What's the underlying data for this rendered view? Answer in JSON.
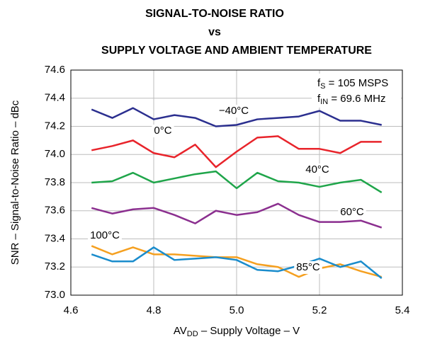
{
  "chart_data": {
    "type": "line",
    "title": [
      "SIGNAL-TO-NOISE RATIO",
      "vs",
      "SUPPLY VOLTAGE AND AMBIENT TEMPERATURE"
    ],
    "xlabel": {
      "text": "AV",
      "sub": "DD",
      "rest": " – Supply Voltage – V"
    },
    "ylabel": "SNR – Signal-to-Noise Ratio – dBc",
    "conditions": [
      {
        "text": "f",
        "sub": "S",
        "rest": " = 105 MSPS"
      },
      {
        "text": "f",
        "sub": "IN",
        "rest": " = 69.6 MHz"
      }
    ],
    "x": [
      4.65,
      4.7,
      4.75,
      4.8,
      4.85,
      4.9,
      4.95,
      5.0,
      5.05,
      5.1,
      5.15,
      5.2,
      5.25,
      5.3,
      5.35
    ],
    "series": [
      {
        "name": "−40°C",
        "color": "#2b2f8f",
        "values": [
          74.32,
          74.26,
          74.33,
          74.25,
          74.28,
          74.26,
          74.2,
          74.21,
          74.25,
          74.26,
          74.27,
          74.31,
          74.24,
          74.24,
          74.21
        ]
      },
      {
        "name": "0°C",
        "color": "#e8242b",
        "values": [
          74.03,
          74.06,
          74.1,
          74.01,
          73.98,
          74.07,
          73.91,
          74.02,
          74.12,
          74.13,
          74.04,
          74.04,
          74.01,
          74.09,
          74.09
        ]
      },
      {
        "name": "40°C",
        "color": "#1fa54a",
        "values": [
          73.8,
          73.81,
          73.87,
          73.8,
          73.83,
          73.86,
          73.88,
          73.76,
          73.87,
          73.81,
          73.8,
          73.77,
          73.8,
          73.82,
          73.73
        ]
      },
      {
        "name": "60°C",
        "color": "#8b2f8f",
        "values": [
          73.62,
          73.58,
          73.61,
          73.62,
          73.57,
          73.51,
          73.6,
          73.57,
          73.59,
          73.65,
          73.57,
          73.52,
          73.52,
          73.53,
          73.48
        ]
      },
      {
        "name": "100°C",
        "color": "#f5a020",
        "values": [
          73.35,
          73.29,
          73.34,
          73.29,
          73.29,
          73.28,
          73.27,
          73.27,
          73.22,
          73.2,
          73.13,
          73.19,
          73.22,
          73.17,
          73.13
        ]
      },
      {
        "name": "85°C",
        "color": "#1a8ccc",
        "values": [
          73.29,
          73.24,
          73.24,
          73.34,
          73.25,
          73.26,
          73.27,
          73.25,
          73.18,
          73.17,
          73.21,
          73.26,
          73.2,
          73.24,
          73.12
        ]
      }
    ],
    "xlim": [
      4.6,
      5.4
    ],
    "xticks": [
      4.6,
      4.8,
      {
        "value": 5.0,
        "label": "5.0"
      },
      5.2,
      5.4
    ],
    "ylim": [
      73.0,
      74.6
    ],
    "yticks": [
      {
        "value": 73.0,
        "label": "73.0"
      },
      73.2,
      73.4,
      73.6,
      73.8,
      {
        "value": 74.0,
        "label": "74.0"
      },
      74.2,
      74.4,
      74.6
    ],
    "grid": true
  }
}
